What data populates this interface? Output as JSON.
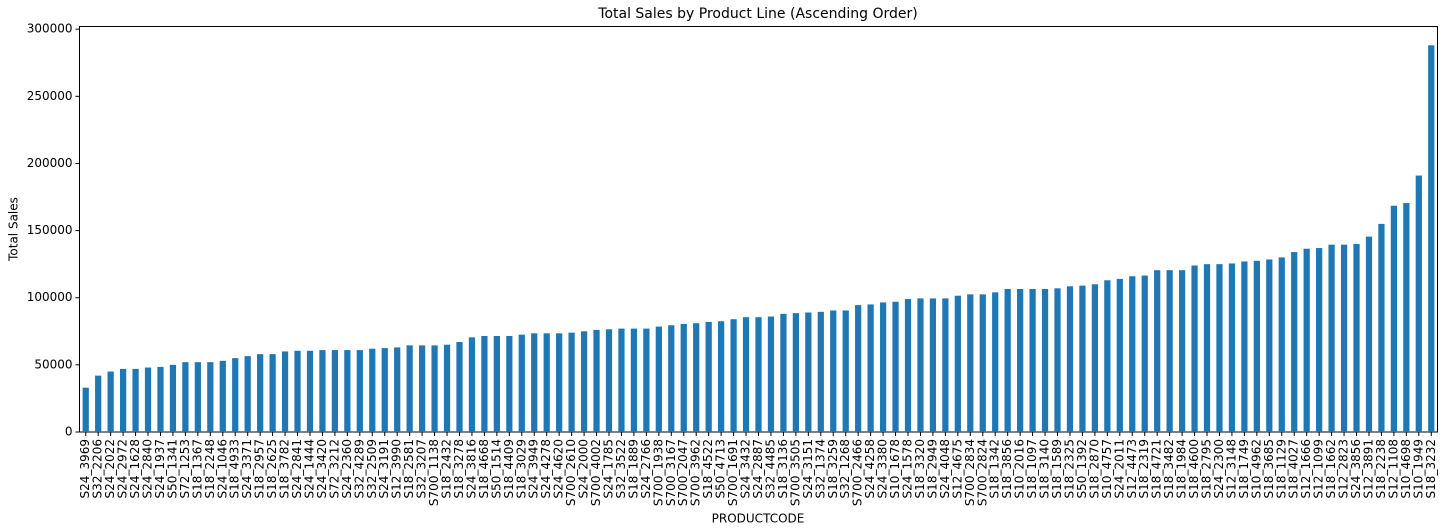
{
  "chart_data": {
    "type": "bar",
    "title": "Total Sales by Product Line (Ascending Order)",
    "x_label": "PRODUCTCODE",
    "y_label": "Total Sales",
    "color": "#1f77b4",
    "ylim": [
      0,
      302000
    ],
    "yticks": [
      0,
      50000,
      100000,
      150000,
      200000,
      250000,
      300000
    ],
    "categories": [
      "S24_3969",
      "S32_2206",
      "S24_2022",
      "S24_2972",
      "S24_1628",
      "S24_2840",
      "S24_1937",
      "S50_1341",
      "S72_1253",
      "S18_1367",
      "S18_2248",
      "S24_1046",
      "S18_4933",
      "S24_3371",
      "S18_2957",
      "S18_2625",
      "S18_3782",
      "S24_2841",
      "S24_1444",
      "S24_3420",
      "S72_3212",
      "S24_2360",
      "S32_4289",
      "S32_2509",
      "S24_3191",
      "S12_3990",
      "S18_2581",
      "S32_3207",
      "S700_1138",
      "S18_2432",
      "S18_3278",
      "S24_3816",
      "S18_4668",
      "S50_1514",
      "S18_4409",
      "S18_3029",
      "S24_3949",
      "S24_4278",
      "S24_4620",
      "S700_2610",
      "S24_2000",
      "S700_4002",
      "S24_1785",
      "S32_3522",
      "S18_1889",
      "S24_2766",
      "S700_1938",
      "S700_3167",
      "S700_2047",
      "S700_3962",
      "S18_4522",
      "S50_4713",
      "S700_1691",
      "S24_3432",
      "S24_2887",
      "S32_4485",
      "S18_3136",
      "S700_3505",
      "S24_3151",
      "S32_1374",
      "S18_3259",
      "S32_1268",
      "S700_2466",
      "S24_4258",
      "S24_3380",
      "S10_1678",
      "S24_1578",
      "S18_3320",
      "S18_2949",
      "S24_4048",
      "S12_4675",
      "S700_2834",
      "S700_2824",
      "S18_1342",
      "S18_3856",
      "S10_2016",
      "S18_1097",
      "S18_3140",
      "S18_1589",
      "S18_2325",
      "S50_1392",
      "S18_2870",
      "S10_4757",
      "S24_2011",
      "S12_4473",
      "S18_2319",
      "S18_4721",
      "S18_3482",
      "S18_1984",
      "S18_4600",
      "S18_2795",
      "S24_2300",
      "S12_3148",
      "S18_1749",
      "S10_4962",
      "S18_3685",
      "S18_1129",
      "S18_4027",
      "S12_1666",
      "S12_1099",
      "S18_1662",
      "S12_2823",
      "S24_3856",
      "S12_3891",
      "S18_2238",
      "S12_1108",
      "S10_4698",
      "S10_1949",
      "S18_3232"
    ],
    "values": [
      33000,
      42000,
      45000,
      47000,
      47000,
      48000,
      48500,
      50000,
      52000,
      52000,
      52000,
      53000,
      55000,
      56500,
      58000,
      58000,
      60000,
      60500,
      60500,
      61000,
      61000,
      61000,
      61000,
      62000,
      62500,
      63000,
      64500,
      64500,
      64500,
      65000,
      67000,
      70500,
      71500,
      71500,
      71500,
      72500,
      73500,
      73500,
      73500,
      74000,
      75000,
      76000,
      76500,
      77000,
      77000,
      77000,
      78500,
      79500,
      80500,
      81000,
      82000,
      82500,
      84000,
      85500,
      85500,
      86000,
      88000,
      88500,
      89000,
      89500,
      90500,
      90500,
      94500,
      95000,
      96500,
      97000,
      99000,
      99500,
      99500,
      99500,
      101500,
      102500,
      102500,
      104000,
      106500,
      106500,
      106500,
      106500,
      107000,
      108500,
      109000,
      110000,
      113000,
      114000,
      116000,
      116500,
      120500,
      120500,
      120500,
      124000,
      125000,
      125000,
      125500,
      127000,
      127500,
      128500,
      130000,
      134000,
      136500,
      137000,
      139500,
      139500,
      140000,
      145500,
      155000,
      168500,
      170500,
      191000,
      288000
    ]
  }
}
